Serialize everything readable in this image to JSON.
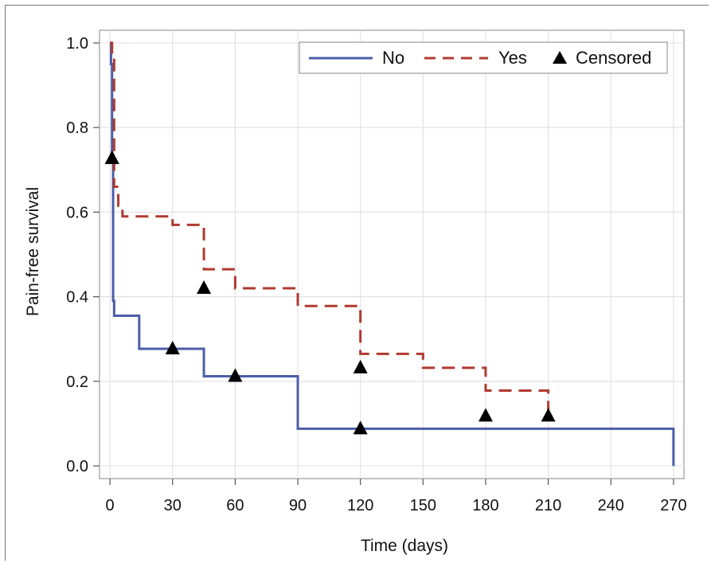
{
  "chart_data": {
    "type": "line",
    "chart_style": "step",
    "xlabel": "Time (days)",
    "ylabel": "Pain-free survival",
    "xlim": [
      -5,
      275
    ],
    "ylim": [
      -0.03,
      1.03
    ],
    "xticks": [
      0,
      30,
      60,
      90,
      120,
      150,
      180,
      210,
      240,
      270
    ],
    "yticks": [
      0.0,
      0.2,
      0.4,
      0.6,
      0.8,
      1.0
    ],
    "ytick_labels": [
      "0.0",
      "0.2",
      "0.4",
      "0.6",
      "0.8",
      "1.0"
    ],
    "grid": true,
    "legend_position": "top-right",
    "legend": [
      "No",
      "Yes",
      "Censored"
    ],
    "series": [
      {
        "name": "No",
        "color": "#4a5ea8",
        "line_style": "solid",
        "x": [
          0,
          0.5,
          1,
          1.5,
          2,
          14,
          45,
          90,
          270,
          270
        ],
        "y": [
          1.0,
          0.95,
          0.72,
          0.39,
          0.355,
          0.277,
          0.212,
          0.088,
          0.088,
          0.0
        ],
        "censored": [
          {
            "x": 1,
            "y": 0.727
          },
          {
            "x": 30,
            "y": 0.277
          },
          {
            "x": 60,
            "y": 0.212
          },
          {
            "x": 120,
            "y": 0.088
          }
        ]
      },
      {
        "name": "Yes",
        "color": "#b13a30",
        "line_style": "dashed",
        "x": [
          0,
          1,
          2,
          4,
          6,
          30,
          45,
          60,
          90,
          120,
          150,
          180,
          210
        ],
        "y": [
          1.0,
          0.96,
          0.66,
          0.615,
          0.59,
          0.57,
          0.465,
          0.42,
          0.378,
          0.265,
          0.232,
          0.178,
          0.118
        ],
        "censored": [
          {
            "x": 1,
            "y": 0.727
          },
          {
            "x": 45,
            "y": 0.42
          },
          {
            "x": 120,
            "y": 0.232
          },
          {
            "x": 180,
            "y": 0.118
          },
          {
            "x": 210,
            "y": 0.118
          }
        ]
      }
    ],
    "marker_color": "#000000"
  }
}
